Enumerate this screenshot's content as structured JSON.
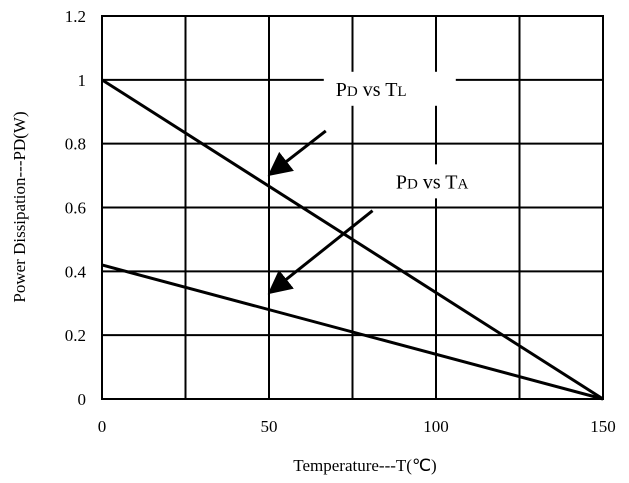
{
  "chart_data": {
    "type": "line",
    "title": "",
    "xlabel": "Temperature---T(℃)",
    "ylabel": "Power Dissipation---PD(W)",
    "xlim": [
      0,
      150
    ],
    "ylim": [
      0,
      1.2
    ],
    "x_ticks": [
      0,
      50,
      100,
      150
    ],
    "x_tick_labels": [
      "0",
      "50",
      "100",
      "150"
    ],
    "y_ticks": [
      0,
      0.2,
      0.4,
      0.6,
      0.8,
      1,
      1.2
    ],
    "y_tick_labels": [
      "0",
      "0.2",
      "0.4",
      "0.6",
      "0.8",
      "1",
      "1.2"
    ],
    "x_grid": [
      0,
      25,
      50,
      75,
      100,
      125,
      150
    ],
    "grid": true,
    "colors": {
      "line": "#000000",
      "grid": "#000000",
      "background": "#ffffff"
    },
    "series": [
      {
        "x": [
          0,
          150
        ],
        "y": [
          1.0,
          0
        ]
      },
      {
        "x": [
          0,
          150
        ],
        "y": [
          0.42,
          0
        ]
      }
    ],
    "annotations": [
      {
        "main1": "P",
        "sub1": "D",
        "mid": " vs ",
        "main2": "T",
        "sub2": "L",
        "text_at": [
          70,
          0.95
        ],
        "arrow_from": [
          67,
          0.84
        ],
        "arrow_to": [
          51,
          0.71
        ]
      },
      {
        "main1": "P",
        "sub1": "D",
        "mid": " vs ",
        "main2": "T",
        "sub2": "A",
        "text_at": [
          88,
          0.66
        ],
        "arrow_from": [
          81,
          0.59
        ],
        "arrow_to": [
          51,
          0.34
        ]
      }
    ]
  }
}
